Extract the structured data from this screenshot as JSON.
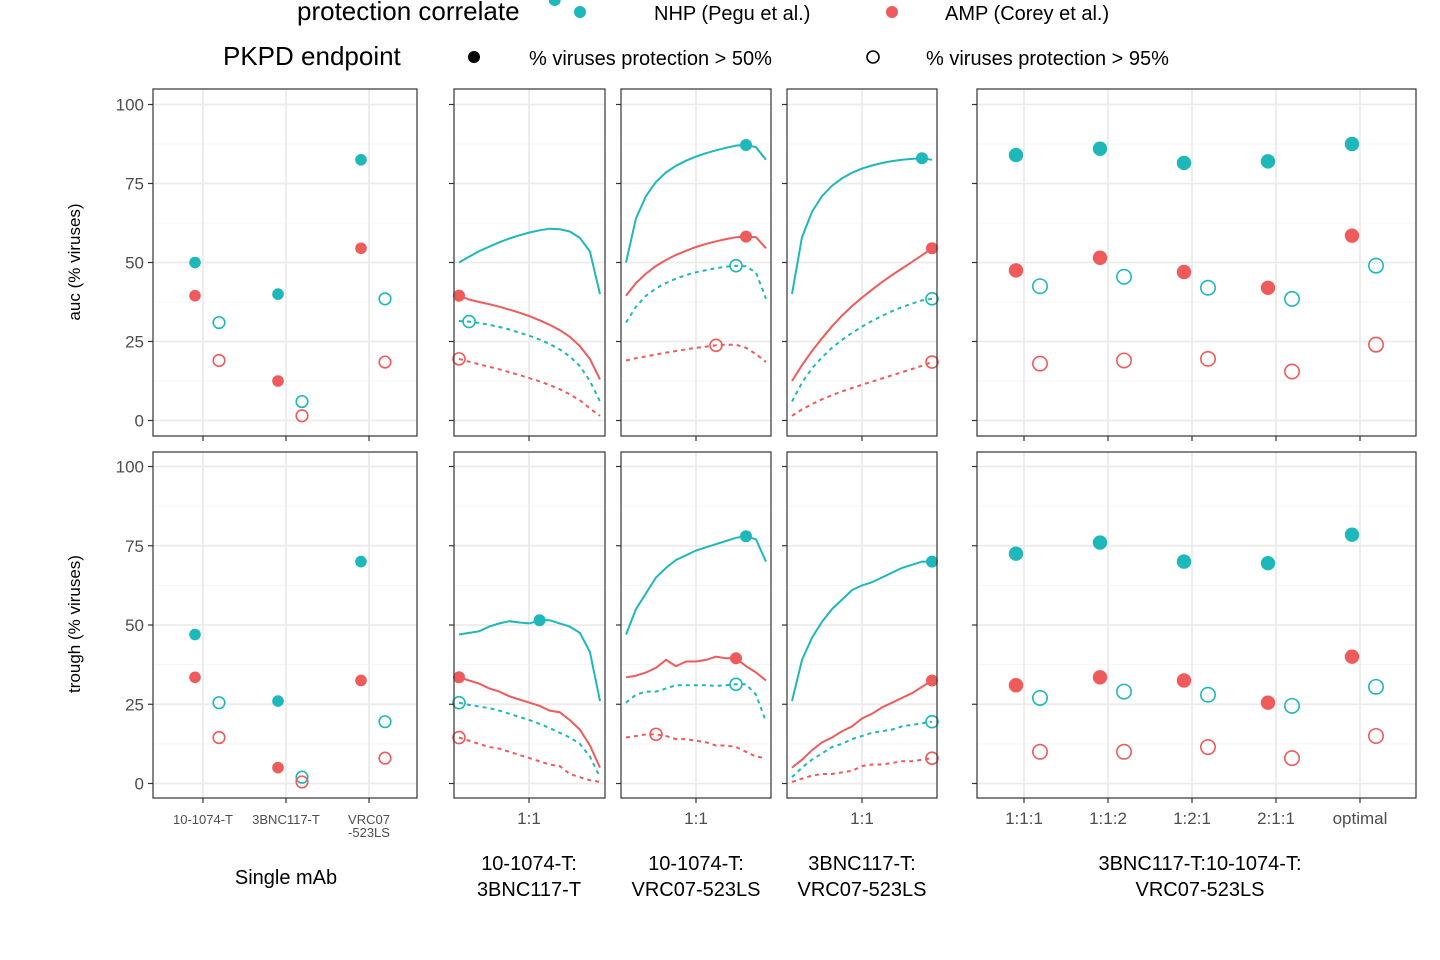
{
  "legend": {
    "color_title": "protection correlate",
    "color_items": [
      {
        "label": "NHP (Pegu et al.)",
        "color": "#1fb8ba"
      },
      {
        "label": "AMP (Corey et al.)",
        "color": "#ef5b5b"
      }
    ],
    "shape_title": "PKPD endpoint",
    "shape_items": [
      {
        "label": "% viruses protection > 50%",
        "shape": "filled-circle"
      },
      {
        "label": "% viruses protection > 95%",
        "shape": "open-circle"
      }
    ]
  },
  "y_axis": {
    "row_labels": [
      "auc (% viruses)",
      "trough (% viruses)"
    ],
    "ticks": [
      "100",
      "75",
      "50",
      "25",
      "0"
    ],
    "ylim": [
      0,
      100
    ]
  },
  "facets": [
    {
      "title_lines": [
        "Single mAb"
      ],
      "x_ticks": [
        "10-1074-T",
        "3BNC117-T",
        "VRC07\n-523LS"
      ]
    },
    {
      "title_lines": [
        "10-1074-T:",
        "3BNC117-T"
      ],
      "x_ticks": [
        "1:1"
      ]
    },
    {
      "title_lines": [
        "10-1074-T:",
        "VRC07-523LS"
      ],
      "x_ticks": [
        "1:1"
      ]
    },
    {
      "title_lines": [
        "3BNC117-T:",
        "VRC07-523LS"
      ],
      "x_ticks": [
        "1:1"
      ]
    },
    {
      "title_lines": [
        "3BNC117-T:10-1074-T:",
        "VRC07-523LS"
      ],
      "x_ticks": [
        "1:1:1",
        "1:1:2",
        "1:2:1",
        "2:1:1",
        "optimal"
      ]
    }
  ],
  "chart_data": {
    "type": "faceted-scatter-line",
    "series_keys": [
      "NHP_50",
      "NHP_95",
      "AMP_50",
      "AMP_95"
    ],
    "single": {
      "auc": {
        "NHP_50": [
          50,
          40,
          82.5
        ],
        "NHP_95": [
          31,
          6,
          38.5
        ],
        "AMP_50": [
          39.5,
          12.5,
          54.5
        ],
        "AMP_95": [
          19,
          1.5,
          18.5
        ]
      },
      "trough": {
        "NHP_50": [
          47,
          26,
          70
        ],
        "NHP_95": [
          25.5,
          2,
          19.5
        ],
        "AMP_50": [
          33.5,
          5,
          32.5
        ],
        "AMP_95": [
          14.5,
          0.5,
          8
        ]
      }
    },
    "combo2": [
      {
        "auc": {
          "NHP_50": {
            "y": [
              50,
              51.8,
              53.6,
              55,
              56.4,
              57.6,
              58.6,
              59.5,
              60.2,
              60.7,
              60.5,
              59.8,
              57.8,
              53.5,
              40
            ],
            "opt": 9.5
          },
          "NHP_95": {
            "y": [
              31.5,
              31.3,
              30.9,
              30.3,
              29.6,
              28.8,
              27.8,
              26.8,
              25.6,
              24.2,
              22.5,
              20.3,
              17.2,
              12.5,
              6
            ],
            "opt": 1
          },
          "AMP_50": {
            "y": [
              39.5,
              38.3,
              37.5,
              36.8,
              36,
              35.1,
              34.1,
              33,
              31.7,
              30.3,
              28.6,
              26.5,
              23.5,
              19.5,
              13
            ],
            "opt": 0
          },
          "AMP_95": {
            "y": [
              19.5,
              18.6,
              17.8,
              17,
              16.2,
              15.3,
              14.4,
              13.4,
              12.4,
              11.2,
              9.9,
              8.3,
              6.4,
              3.8,
              1.5
            ],
            "opt": 0
          }
        },
        "trough": {
          "NHP_50": {
            "y": [
              47,
              47.5,
              48,
              49.5,
              50.5,
              51.2,
              50.8,
              50.5,
              51.5,
              51.5,
              50.5,
              49.5,
              47.5,
              41.5,
              26
            ],
            "opt": 8
          },
          "NHP_95": {
            "y": [
              25.5,
              24.8,
              24.3,
              23.8,
              23,
              22,
              21,
              20,
              18.8,
              17.5,
              16,
              14.5,
              12.5,
              8.5,
              2
            ],
            "opt": 0
          },
          "AMP_50": {
            "y": [
              33.5,
              32.5,
              31.5,
              30,
              29,
              27.5,
              26.5,
              25.5,
              24.5,
              23,
              22.5,
              20,
              17,
              12,
              5
            ],
            "opt": 0
          },
          "AMP_95": {
            "y": [
              14.5,
              13.5,
              12.5,
              11.5,
              11,
              10,
              9,
              8,
              7,
              6,
              5.5,
              3,
              2,
              1,
              0.5
            ],
            "opt": 0
          }
        }
      },
      {
        "auc": {
          "NHP_50": {
            "y": [
              50,
              64,
              71,
              75.5,
              78.5,
              80.6,
              82.2,
              83.5,
              84.6,
              85.5,
              86.3,
              87,
              87.2,
              86.5,
              82.5
            ],
            "opt": 12
          },
          "NHP_95": {
            "y": [
              31,
              36,
              39.5,
              41.8,
              43.5,
              44.9,
              46,
              46.9,
              47.6,
              48.2,
              48.7,
              49,
              48.8,
              46.8,
              38.5
            ],
            "opt": 11
          },
          "AMP_50": {
            "y": [
              39.5,
              43.5,
              46.5,
              48.9,
              50.8,
              52.4,
              53.7,
              54.9,
              55.9,
              56.7,
              57.4,
              58,
              58.2,
              58,
              54.5
            ],
            "opt": 12
          },
          "AMP_95": {
            "y": [
              19,
              19.7,
              20.3,
              20.9,
              21.5,
              22,
              22.5,
              23,
              23.4,
              23.8,
              24,
              24,
              23,
              21,
              18.5
            ],
            "opt": 9
          }
        },
        "trough": {
          "NHP_50": {
            "y": [
              47,
              55,
              60,
              65,
              68,
              70.5,
              72,
              73.5,
              74.5,
              75.5,
              76.5,
              77.5,
              78,
              77,
              70
            ],
            "opt": 12
          },
          "NHP_95": {
            "y": [
              25.5,
              28,
              29,
              29,
              30,
              31,
              31,
              31,
              31,
              30.8,
              31,
              31.3,
              31.3,
              28,
              19.5
            ],
            "opt": 11
          },
          "AMP_50": {
            "y": [
              33.5,
              34,
              35,
              36.5,
              39,
              37,
              38.5,
              38.5,
              39,
              40,
              39.5,
              39.5,
              37,
              35,
              32.5
            ],
            "opt": 11
          },
          "AMP_95": {
            "y": [
              14.5,
              15,
              15.5,
              15.5,
              15,
              14,
              14,
              13.5,
              13,
              12,
              12,
              11.5,
              10,
              8.5,
              8
            ],
            "opt": 3
          }
        }
      },
      {
        "auc": {
          "NHP_50": {
            "y": [
              40,
              58,
              66,
              71,
              74.3,
              76.6,
              78.4,
              79.7,
              80.7,
              81.5,
              82.1,
              82.5,
              82.8,
              83,
              82.5
            ],
            "opt": 13
          },
          "NHP_95": {
            "y": [
              6,
              12,
              16.5,
              20,
              23,
              25.5,
              27.7,
              29.7,
              31.5,
              33.1,
              34.6,
              35.9,
              37,
              38,
              38.5
            ],
            "opt": 14
          },
          "AMP_50": {
            "y": [
              12.5,
              17.5,
              22,
              26,
              29.8,
              33.2,
              36.2,
              38.9,
              41.4,
              43.8,
              46,
              48.1,
              50.2,
              52.3,
              54.5
            ],
            "opt": 14
          },
          "AMP_95": {
            "y": [
              1.5,
              3.5,
              5.2,
              6.7,
              8,
              9.2,
              10.3,
              11.3,
              12.3,
              13.3,
              14.3,
              15.3,
              16.3,
              17.3,
              18.5
            ],
            "opt": 14
          }
        },
        "trough": {
          "NHP_50": {
            "y": [
              26,
              39,
              46,
              51,
              55,
              58,
              61,
              62.5,
              63.5,
              65,
              66.5,
              68,
              69,
              70,
              70
            ],
            "opt": 14
          },
          "NHP_95": {
            "y": [
              2,
              5,
              7.5,
              9.5,
              11.5,
              12.5,
              14,
              15,
              16,
              16.5,
              17,
              18,
              18.5,
              19,
              19.5
            ],
            "opt": 14
          },
          "AMP_50": {
            "y": [
              5,
              7.5,
              10.5,
              13,
              14.5,
              16.5,
              18,
              20.5,
              22,
              24,
              25.5,
              27,
              28.5,
              30.5,
              32.5
            ],
            "opt": 14
          },
          "AMP_95": {
            "y": [
              0.5,
              1.5,
              2.5,
              3,
              3,
              3.5,
              4,
              5.5,
              6,
              6,
              6.5,
              7,
              7,
              7.5,
              8
            ],
            "opt": 14
          }
        }
      }
    ],
    "triple": {
      "auc": {
        "NHP_50": [
          84,
          86,
          81.5,
          82,
          87.5
        ],
        "NHP_95": [
          42.5,
          45.5,
          42,
          38.5,
          49
        ],
        "AMP_50": [
          47.5,
          51.5,
          47,
          42,
          58.5
        ],
        "AMP_95": [
          18,
          19,
          19.5,
          15.5,
          24
        ]
      },
      "trough": {
        "NHP_50": [
          72.5,
          76,
          70,
          69.5,
          78.5
        ],
        "NHP_95": [
          27,
          29,
          28,
          24.5,
          30.5
        ],
        "AMP_50": [
          31,
          33.5,
          32.5,
          25.5,
          40
        ],
        "AMP_95": [
          10,
          10,
          11.5,
          8,
          15
        ]
      }
    }
  }
}
